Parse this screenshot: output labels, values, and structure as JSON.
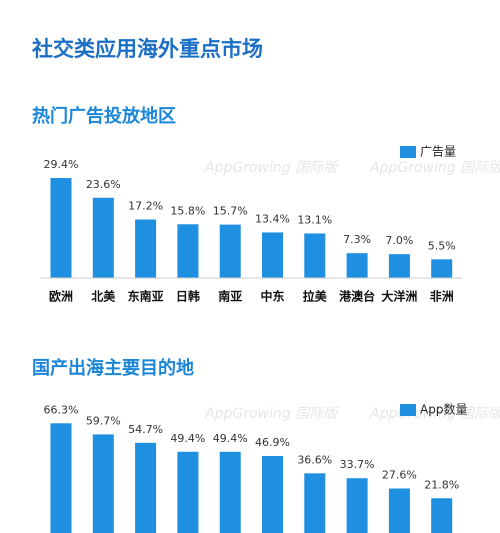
{
  "title": "社交类应用海外重点市场",
  "watermark": "AppGrowing 国际版",
  "chart_data": [
    {
      "type": "bar",
      "title": "热门广告投放地区",
      "categories": [
        "欧洲",
        "北美",
        "东南亚",
        "日韩",
        "南亚",
        "中东",
        "拉美",
        "港澳台",
        "大洋洲",
        "非洲"
      ],
      "series": [
        {
          "name": "广告量",
          "color": "#1e8fe1",
          "values": [
            29.4,
            23.6,
            17.2,
            15.8,
            15.7,
            13.4,
            13.1,
            7.3,
            7.0,
            5.5
          ],
          "value_labels": [
            "29.4%",
            "23.6%",
            "17.2%",
            "15.8%",
            "15.7%",
            "13.4%",
            "13.1%",
            "7.3%",
            "7.0%",
            "5.5%"
          ]
        }
      ]
    },
    {
      "type": "bar",
      "title": "国产出海主要目的地",
      "series": [
        {
          "name": "App数量",
          "color": "#1e8fe1",
          "values": [
            66.3,
            59.7,
            54.7,
            49.4,
            49.4,
            46.9,
            36.6,
            33.7,
            27.6,
            21.8
          ],
          "value_labels": [
            "66.3%",
            "59.7%",
            "54.7%",
            "49.4%",
            "49.4%",
            "46.9%",
            "36.6%",
            "33.7%",
            "27.6%",
            "21.8%"
          ]
        }
      ]
    }
  ]
}
